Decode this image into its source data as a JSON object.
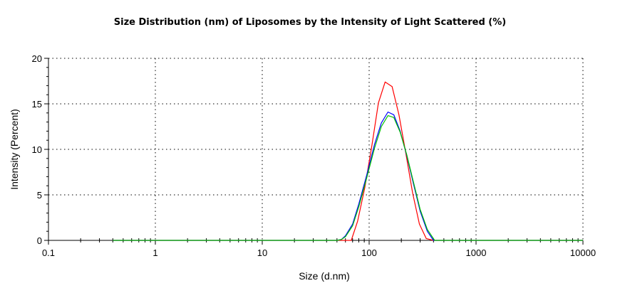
{
  "chart_data": {
    "type": "line",
    "title": "Size Distribution (nm) of Liposomes by the Intensity of Light Scattered (%)",
    "xlabel": "Size (d.nm)",
    "ylabel": "Intensity (Percent)",
    "x_scale": "log",
    "xlim": [
      0.1,
      10000
    ],
    "ylim": [
      0,
      20
    ],
    "x_ticks": [
      "0.1",
      "1",
      "10",
      "100",
      "1000",
      "10000"
    ],
    "y_ticks": [
      "0",
      "5",
      "10",
      "15",
      "20"
    ],
    "grid": true,
    "legend": "none",
    "series": [
      {
        "color": "#ff0000",
        "x": [
          0.4,
          1,
          10,
          50,
          68,
          78,
          91,
          106,
          122,
          141,
          164,
          190,
          220,
          255,
          295,
          342,
          400,
          10000
        ],
        "y": [
          0,
          0,
          0,
          0,
          0,
          2.1,
          5.8,
          10.4,
          15.1,
          17.4,
          16.9,
          13.8,
          9.6,
          5.2,
          1.8,
          0.2,
          0,
          0
        ]
      },
      {
        "color": "#0000ff",
        "x": [
          0.4,
          1,
          10,
          50,
          55,
          60,
          70,
          80,
          95,
          112,
          130,
          150,
          170,
          195,
          225,
          260,
          300,
          350,
          400,
          10000
        ],
        "y": [
          0,
          0,
          0,
          0,
          0.1,
          0.5,
          1.8,
          4.0,
          7.2,
          10.5,
          12.9,
          14.1,
          13.8,
          12.0,
          9.3,
          6.2,
          3.2,
          1.0,
          0,
          0
        ]
      },
      {
        "color": "#00c000",
        "x": [
          0.4,
          1,
          10,
          50,
          55,
          60,
          70,
          80,
          95,
          112,
          130,
          150,
          170,
          195,
          225,
          260,
          300,
          350,
          410,
          10000
        ],
        "y": [
          0,
          0,
          0,
          0,
          0.1,
          0.4,
          1.6,
          3.7,
          6.9,
          10.1,
          12.5,
          13.7,
          13.5,
          11.9,
          9.4,
          6.4,
          3.4,
          1.2,
          0,
          0
        ]
      }
    ]
  }
}
